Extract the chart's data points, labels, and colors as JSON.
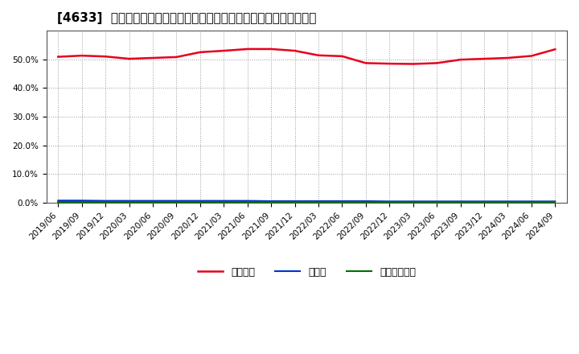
{
  "title": "[4633]  自己資本、のれん、繰延税金資産の総資産に対する比率の推移",
  "x_labels": [
    "2019/06",
    "2019/09",
    "2019/12",
    "2020/03",
    "2020/06",
    "2020/09",
    "2020/12",
    "2021/03",
    "2021/06",
    "2021/09",
    "2021/12",
    "2022/03",
    "2022/06",
    "2022/09",
    "2022/12",
    "2023/03",
    "2023/06",
    "2023/09",
    "2023/12",
    "2024/03",
    "2024/06",
    "2024/09"
  ],
  "jikoshihon": [
    0.509,
    0.513,
    0.51,
    0.502,
    0.505,
    0.508,
    0.525,
    0.53,
    0.536,
    0.536,
    0.53,
    0.514,
    0.511,
    0.487,
    0.485,
    0.484,
    0.487,
    0.499,
    0.502,
    0.505,
    0.512,
    0.535
  ],
  "noren": [
    0.008,
    0.008,
    0.007,
    0.007,
    0.007,
    0.007,
    0.007,
    0.007,
    0.007,
    0.006,
    0.006,
    0.006,
    0.006,
    0.006,
    0.005,
    0.005,
    0.005,
    0.005,
    0.005,
    0.005,
    0.005,
    0.005
  ],
  "kuenzeichisan": [
    0.003,
    0.003,
    0.003,
    0.003,
    0.003,
    0.003,
    0.003,
    0.003,
    0.003,
    0.003,
    0.003,
    0.003,
    0.003,
    0.003,
    0.003,
    0.003,
    0.003,
    0.003,
    0.003,
    0.003,
    0.003,
    0.003
  ],
  "color_jikoshihon": "#e8001c",
  "color_noren": "#0033cc",
  "color_kuenzeichisan": "#007000",
  "legend_jikoshihon": "自己資本",
  "legend_noren": "のれん",
  "legend_kuenzeichisan": "繰延税金資産",
  "ylim": [
    0.0,
    0.6
  ],
  "yticks": [
    0.0,
    0.1,
    0.2,
    0.3,
    0.4,
    0.5
  ],
  "bg_color": "#ffffff",
  "plot_bg_color": "#ffffff",
  "grid_color": "#999999",
  "title_fontsize": 11,
  "tick_fontsize": 7.5,
  "legend_fontsize": 9
}
